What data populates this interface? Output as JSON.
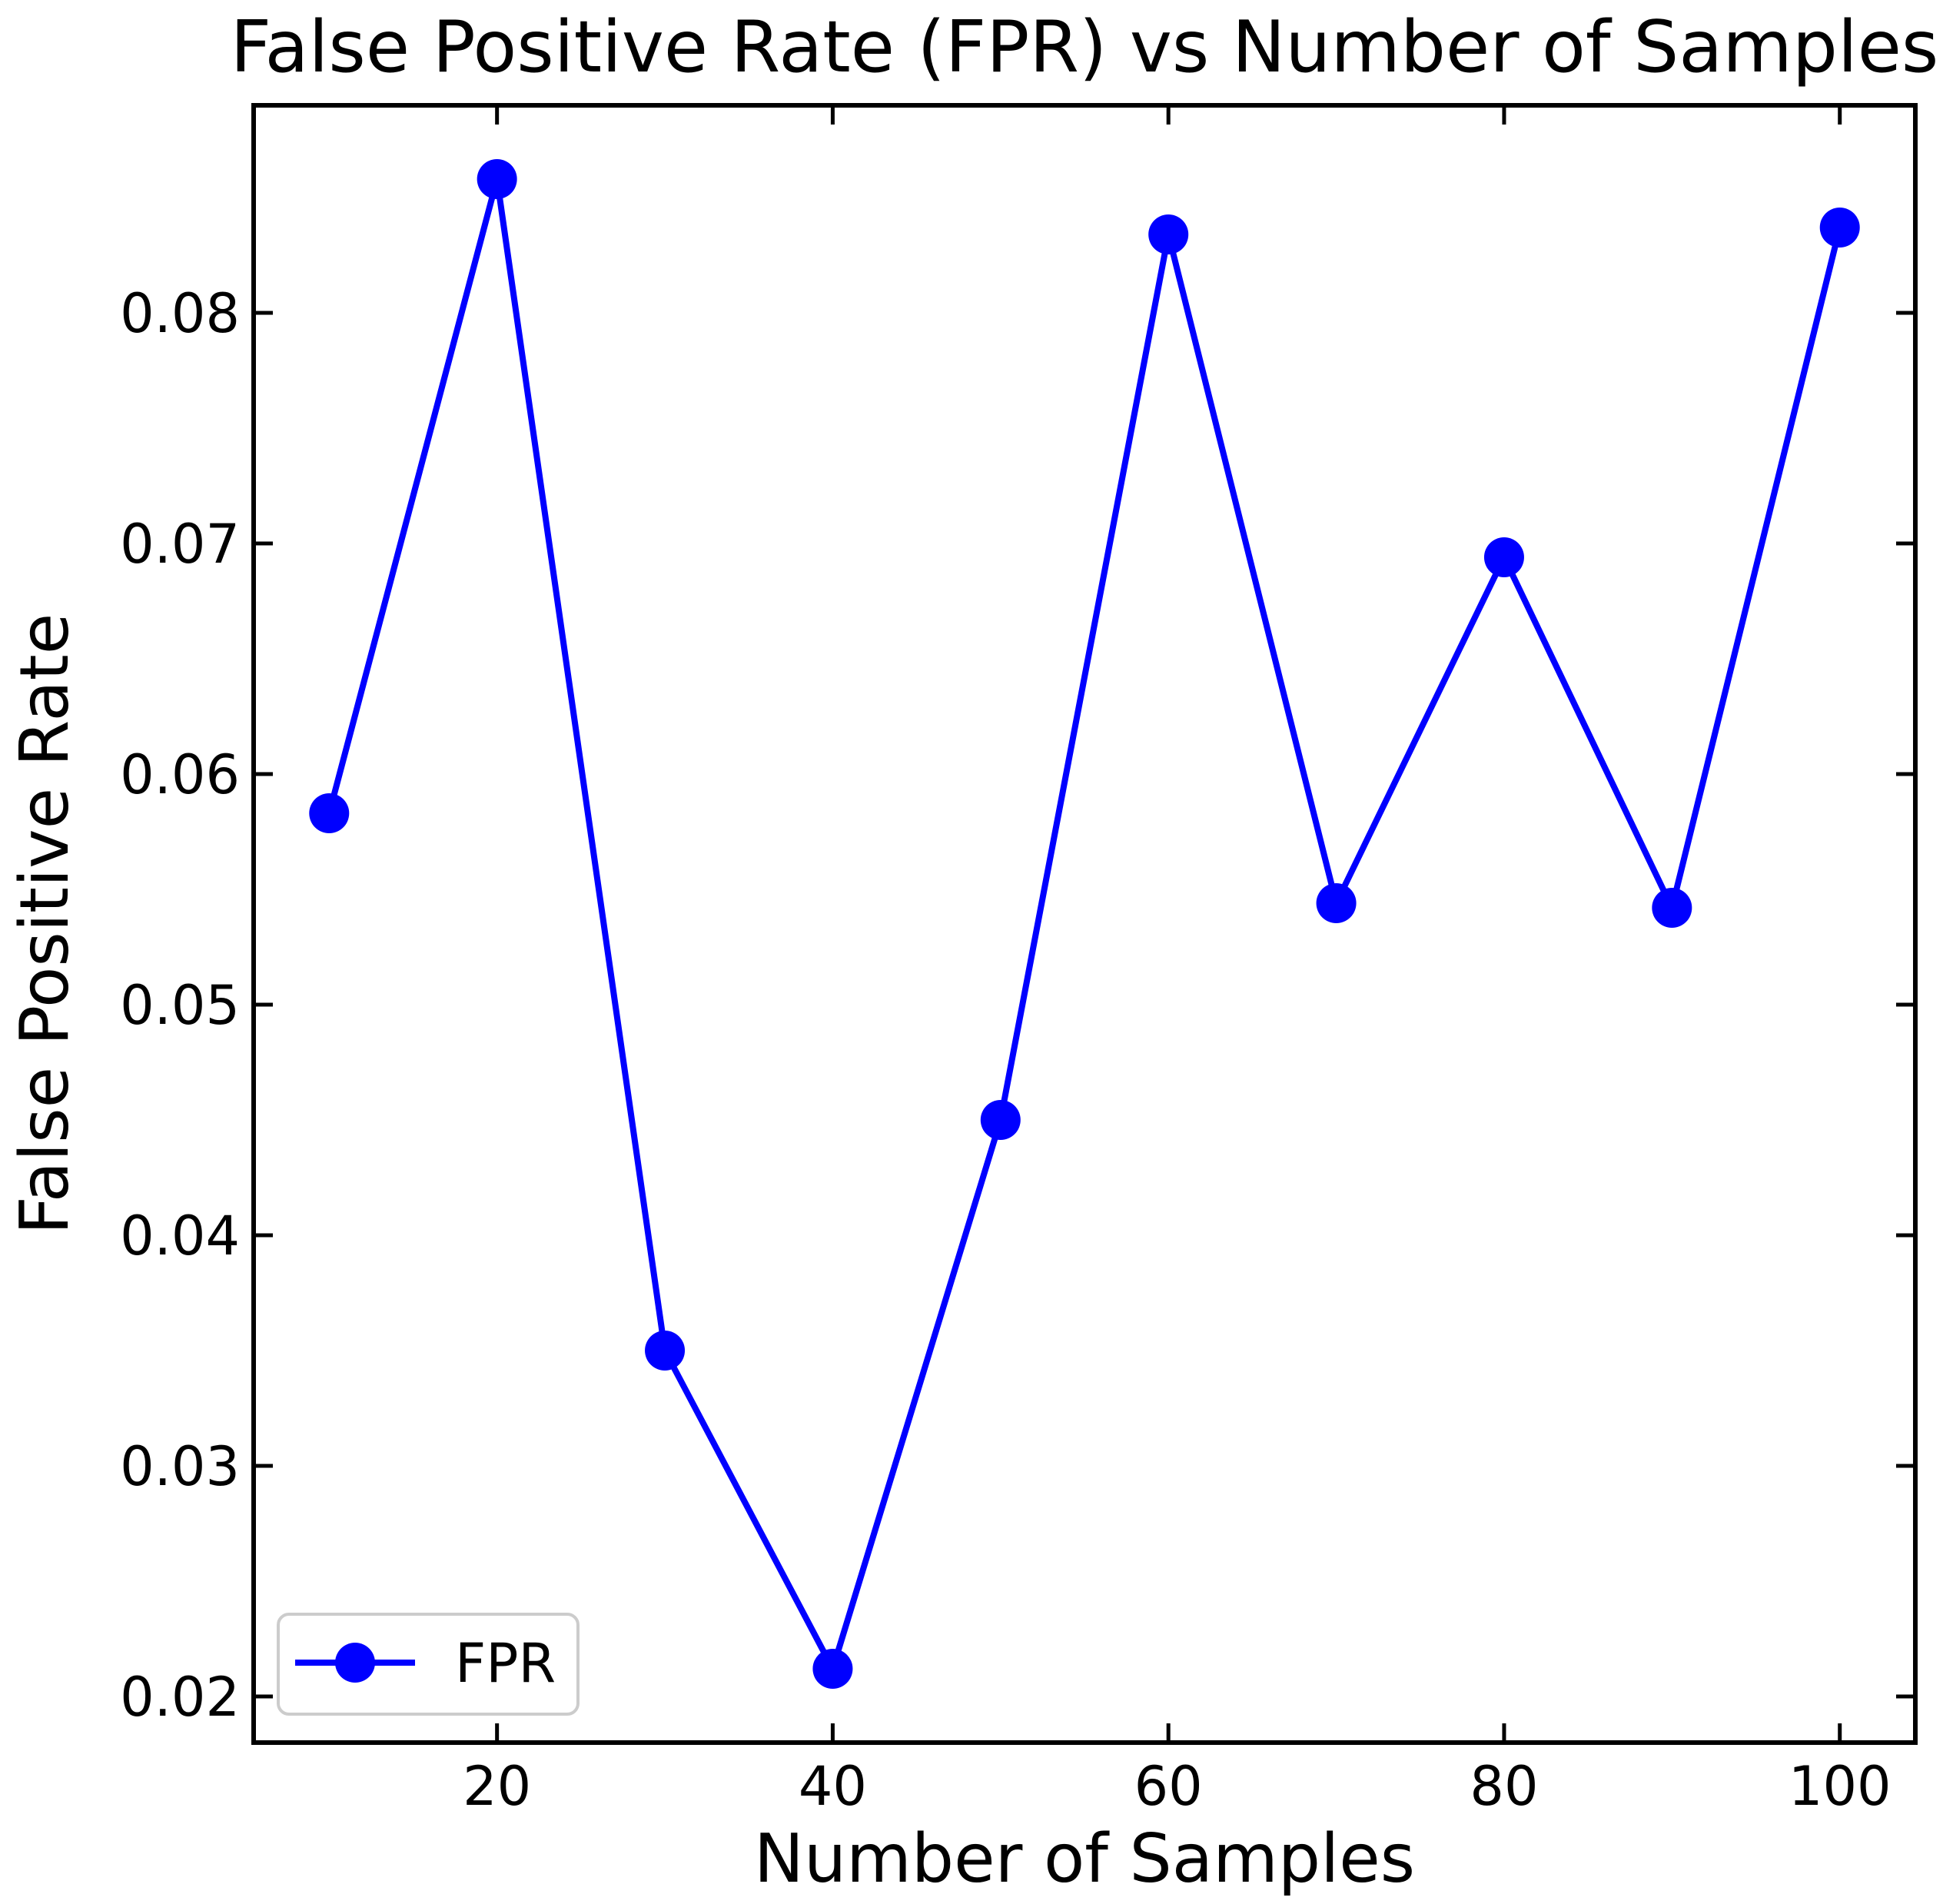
{
  "chart_data": {
    "type": "line",
    "title": "False Positive Rate (FPR) vs Number of Samples",
    "xlabel": "Number of Samples",
    "ylabel": "False Positive Rate",
    "x": [
      10,
      20,
      30,
      40,
      50,
      60,
      70,
      80,
      90,
      100
    ],
    "series": [
      {
        "name": "FPR",
        "color": "#0000ff",
        "values": [
          0.0583,
          0.0858,
          0.035,
          0.0212,
          0.045,
          0.0834,
          0.0544,
          0.0694,
          0.0542,
          0.0837
        ]
      }
    ],
    "xlim": [
      5.5,
      104.5
    ],
    "ylim": [
      0.018,
      0.089
    ],
    "xticks": {
      "values": [
        20,
        40,
        60,
        80,
        100
      ],
      "labels": [
        "20",
        "40",
        "60",
        "80",
        "100"
      ]
    },
    "yticks": {
      "values": [
        0.02,
        0.03,
        0.04,
        0.05,
        0.06,
        0.07,
        0.08
      ],
      "labels": [
        "0.02",
        "0.03",
        "0.04",
        "0.05",
        "0.06",
        "0.07",
        "0.08"
      ]
    },
    "grid": false,
    "legend": {
      "position": "lower left",
      "entries": [
        "FPR"
      ]
    },
    "colors": {
      "spine": "#000000",
      "text": "#000000",
      "legend_border": "#cccccc",
      "legend_bg": "#ffffff"
    }
  }
}
